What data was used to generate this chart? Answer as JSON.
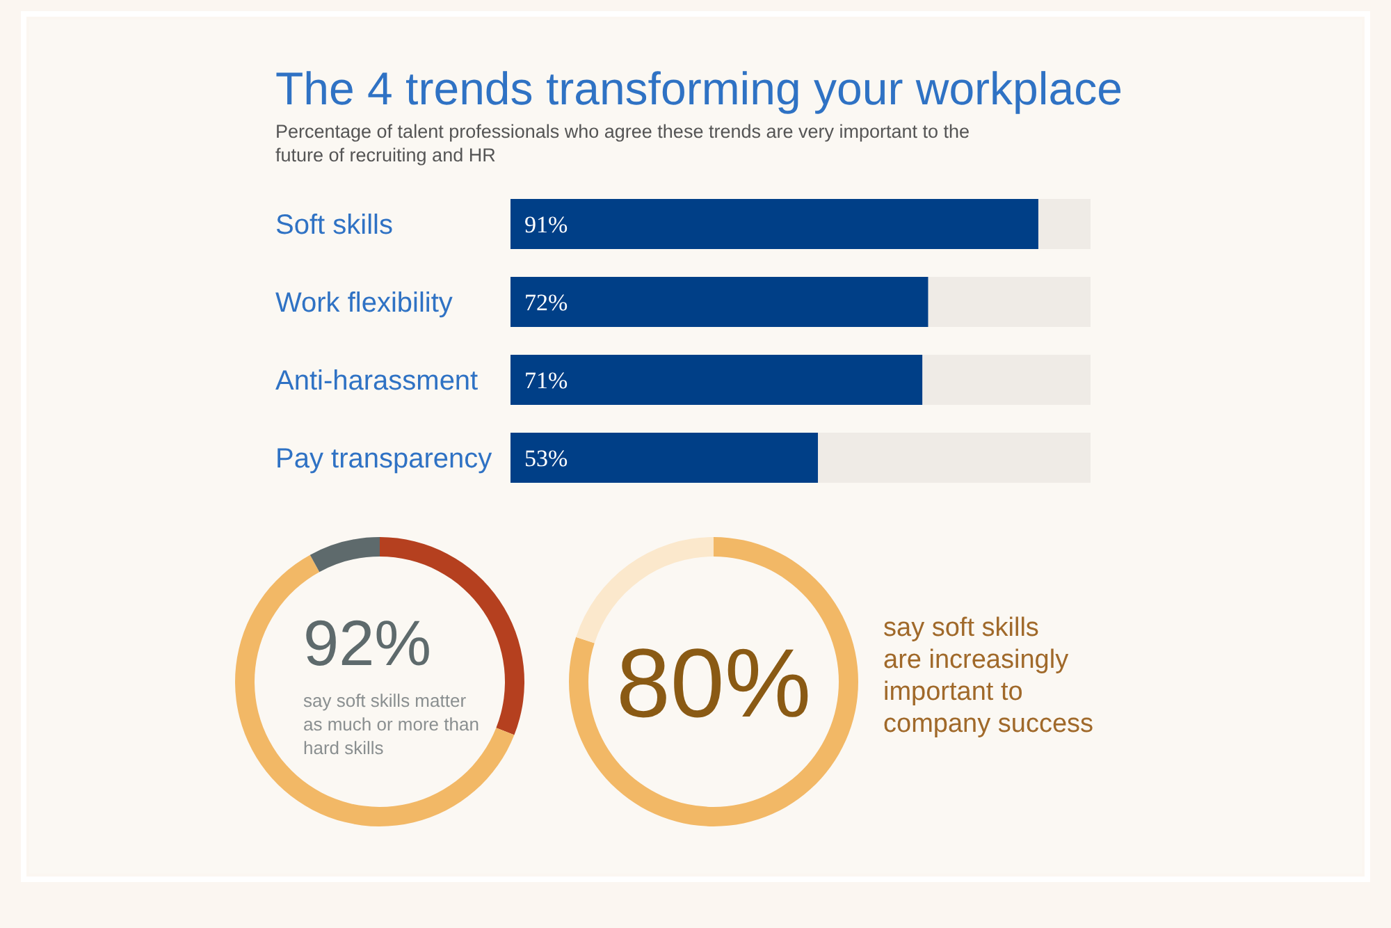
{
  "chart_data": [
    {
      "type": "bar",
      "orientation": "horizontal",
      "title": "The 4 trends transforming your workplace",
      "subtitle": "Percentage of talent professionals who agree these trends are very important to the future of recruiting and HR",
      "categories": [
        "Soft skills",
        "Work flexibility",
        "Anti-harassment",
        "Pay transparency"
      ],
      "values": [
        91,
        72,
        71,
        53
      ],
      "value_labels": [
        "91%",
        "72%",
        "71%",
        "53%"
      ],
      "color": "#003f87",
      "xlim": [
        0,
        100
      ]
    },
    {
      "type": "donut",
      "categories": [
        null,
        null,
        null
      ],
      "values": [
        31,
        61,
        8
      ],
      "colors": [
        "#b5401f",
        "#f2b866",
        "#5e6a6c"
      ],
      "annotations": [
        "92%",
        "say soft skills matter as much or more than hard skills"
      ]
    },
    {
      "type": "donut",
      "categories": [
        null,
        null
      ],
      "values": [
        80,
        20
      ],
      "colors": [
        "#f2b866",
        "#fbe8cc"
      ],
      "annotations": [
        "80%",
        "say soft skills are increasingly important to company success"
      ]
    }
  ]
}
